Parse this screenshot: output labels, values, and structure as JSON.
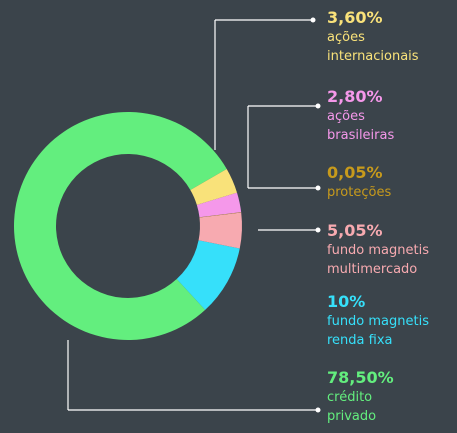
{
  "chart_data": {
    "type": "donut",
    "categories": [
      "ações\ninternacionais",
      "ações\nbrasileiras",
      "proteções",
      "fundo magnetis\nmultimercado",
      "fundo magnetis\nrenda fixa",
      "crédito\nprivado"
    ],
    "values": [
      3.6,
      2.8,
      0.05,
      5.05,
      10,
      78.5
    ],
    "value_labels": [
      "3,60%",
      "2,80%",
      "0,05%",
      "5,05%",
      "10%",
      "78,50%"
    ],
    "colors": [
      "#f9e27a",
      "#f598ea",
      "#c79a1c",
      "#f7aab0",
      "#36e0fa",
      "#63ee7e"
    ]
  }
}
